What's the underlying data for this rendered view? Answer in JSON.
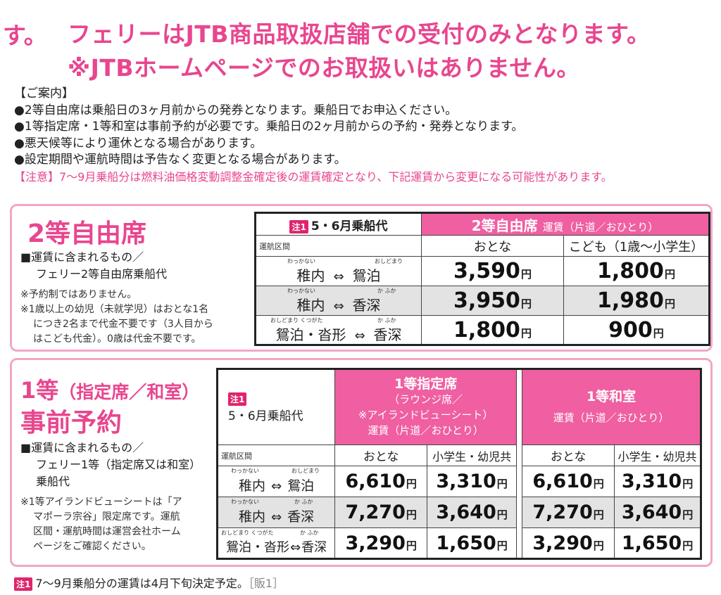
{
  "header": {
    "fragment": "す。",
    "line1": "フェリーはJTB商品取扱店舗での受付のみとなります。",
    "line2": "※JTBホームページでのお取扱いはありません。"
  },
  "guide": {
    "title": "【ご案内】",
    "items": [
      "●2等自由席は乗船日の3ヶ月前からの発券となります。乗船日でお申込ください。",
      "●1等指定席・1等和室は事前予約が必要です。乗船日の2ヶ月前からの予約・発券となります。",
      "●悪天候等により運休となる場合があります。",
      "●設定期間や運航時間は予告なく変更となる場合があります。"
    ],
    "caution": "【注意】7〜9月乗船分は燃料油価格変動調整金確定後の運賃確定となり、下記運賃から変更になる可能性があります。"
  },
  "section2": {
    "title": "2等自由席",
    "included_title": "■運賃に含まれるもの／",
    "included_item": "フェリー2等自由席乗船代",
    "notes": [
      "※予約制ではありません。",
      "※1歳以上の幼児（未就学児）はおとな1名",
      "につき2名まで代金不要です（3人目から",
      "はこども代金）。0歳は代金不要です。"
    ],
    "table": {
      "note_tag": "注1",
      "season": "5・6月乗船代",
      "class_name": "2等自由席",
      "fare_type": "運賃（片道／おひとり）",
      "route_header": "運航区間",
      "col_adult": "おとな",
      "col_child": "こども（1歳〜小学生）",
      "yen": "円",
      "arrow": "⇔",
      "rows": [
        {
          "from": "稚内",
          "from_ruby": "わっかない",
          "to": "鴛泊",
          "to_ruby": "おしどまり",
          "adult": "3,590",
          "child": "1,800"
        },
        {
          "from": "稚内",
          "from_ruby": "わっかない",
          "to": "香深",
          "to_ruby": "か ふか",
          "adult": "3,950",
          "child": "1,980"
        },
        {
          "from": "鴛泊・沓形",
          "from_ruby": "おしどまり くつがた",
          "to": "香深",
          "to_ruby": "か ふか",
          "adult": "1,800",
          "child": "900"
        }
      ]
    }
  },
  "section1": {
    "title_a": "1等",
    "title_a_paren": "（指定席／和室）",
    "title_b": "事前予約",
    "included_title": "■運賃に含まれるもの／",
    "included_item_1": "フェリー1等（指定席又は和室）",
    "included_item_2": "乗船代",
    "notes": [
      "※1等アイランドビューシートは「ア",
      "マポーラ宗谷」限定席です。運航",
      "区間・運航時間は運営会社ホーム",
      "ページをご確認ください。"
    ],
    "table": {
      "note_tag": "注1",
      "season": "5・6月乗船代",
      "seat_class": "1等指定席",
      "seat_sub_1": "（ラウンジ席／",
      "seat_sub_2": "※アイランドビューシート）",
      "fare_type": "運賃（片道／おひとり）",
      "room_class": "1等和室",
      "route_header": "運航区間",
      "col_adult": "おとな",
      "col_child": "小学生・幼児共",
      "yen": "円",
      "arrow": "⇔",
      "rows": [
        {
          "from": "稚内",
          "from_ruby": "わっかない",
          "to": "鴛泊",
          "to_ruby": "おしどまり",
          "seat_adult": "6,610",
          "seat_child": "3,310",
          "room_adult": "6,610",
          "room_child": "3,310"
        },
        {
          "from": "稚内",
          "from_ruby": "わっかない",
          "to": "香深",
          "to_ruby": "か ふか",
          "seat_adult": "7,270",
          "seat_child": "3,640",
          "room_adult": "7,270",
          "room_child": "3,640"
        },
        {
          "from": "鴛泊・沓形",
          "from_ruby": "おしどまり くつがた",
          "to": "香深",
          "to_ruby": "か ふか",
          "seat_adult": "3,290",
          "seat_child": "1,650",
          "room_adult": "3,290",
          "room_child": "1,650"
        }
      ]
    }
  },
  "footer": {
    "note_tag": "注1",
    "text": "7〜9月乗船分の運賃は4月下旬決定予定。",
    "code": "［販1］"
  }
}
